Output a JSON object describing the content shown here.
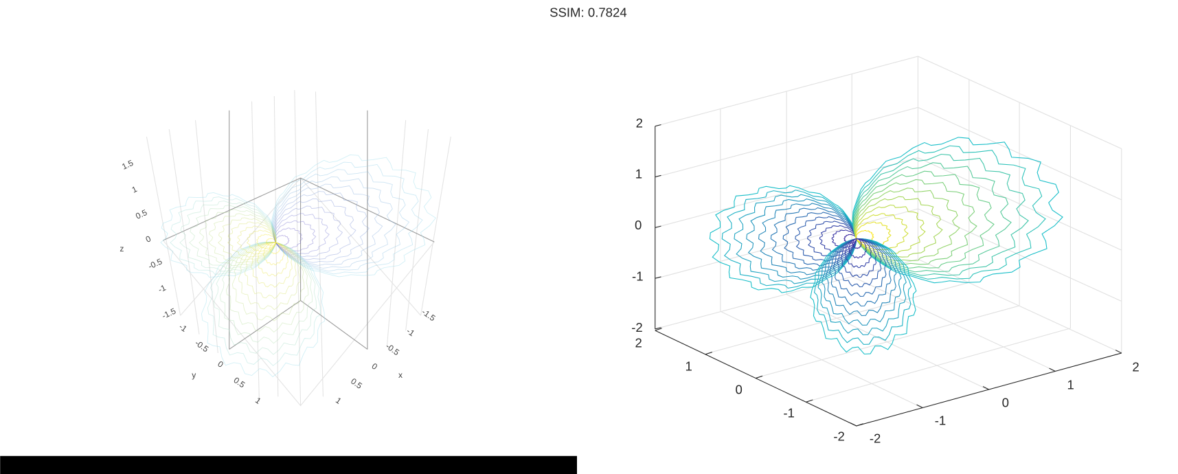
{
  "title": "SSIM: 0.7824",
  "left_plot": {
    "zlabel": "z",
    "ylabel": "y",
    "xlabel": "x",
    "zticks": [
      1.5,
      1,
      0.5,
      0,
      -0.5,
      -1,
      -1.5
    ],
    "yticks": [
      -1,
      -0.5,
      0,
      0.5,
      1
    ],
    "xticks": [
      -1.5,
      -1,
      -0.5,
      0,
      0.5,
      1
    ]
  },
  "right_plot": {
    "zticks": [
      2,
      1,
      0,
      -1,
      -2
    ],
    "yticks": [
      2,
      1,
      0,
      -1,
      -2
    ],
    "xticks": [
      -2,
      -1,
      0,
      1,
      2
    ]
  }
}
